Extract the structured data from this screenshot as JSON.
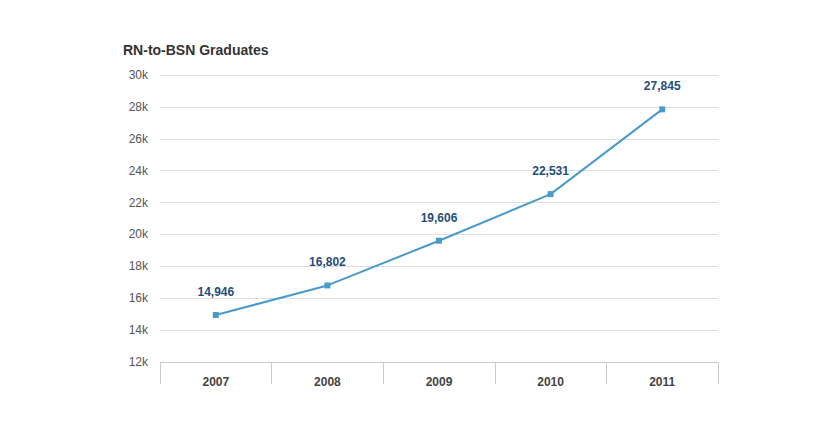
{
  "chart_data": {
    "type": "line",
    "title": "RN-to-BSN Graduates",
    "categories": [
      "2007",
      "2008",
      "2009",
      "2010",
      "2011"
    ],
    "values": [
      14946,
      16802,
      19606,
      22531,
      27845
    ],
    "value_labels": [
      "14,946",
      "16,802",
      "19,606",
      "22,531",
      "27,845"
    ],
    "color": "#4a9bc9",
    "ylim": [
      12000,
      30000
    ],
    "yticks": [
      {
        "value": 12000,
        "label": "12k"
      },
      {
        "value": 14000,
        "label": "14k"
      },
      {
        "value": 16000,
        "label": "16k"
      },
      {
        "value": 18000,
        "label": "18k"
      },
      {
        "value": 20000,
        "label": "20k"
      },
      {
        "value": 22000,
        "label": "22k"
      },
      {
        "value": 24000,
        "label": "24k"
      },
      {
        "value": 26000,
        "label": "26k"
      },
      {
        "value": 28000,
        "label": "28k"
      },
      {
        "value": 30000,
        "label": "30k"
      }
    ],
    "grid": true,
    "data_labels": true,
    "marker": "square"
  }
}
